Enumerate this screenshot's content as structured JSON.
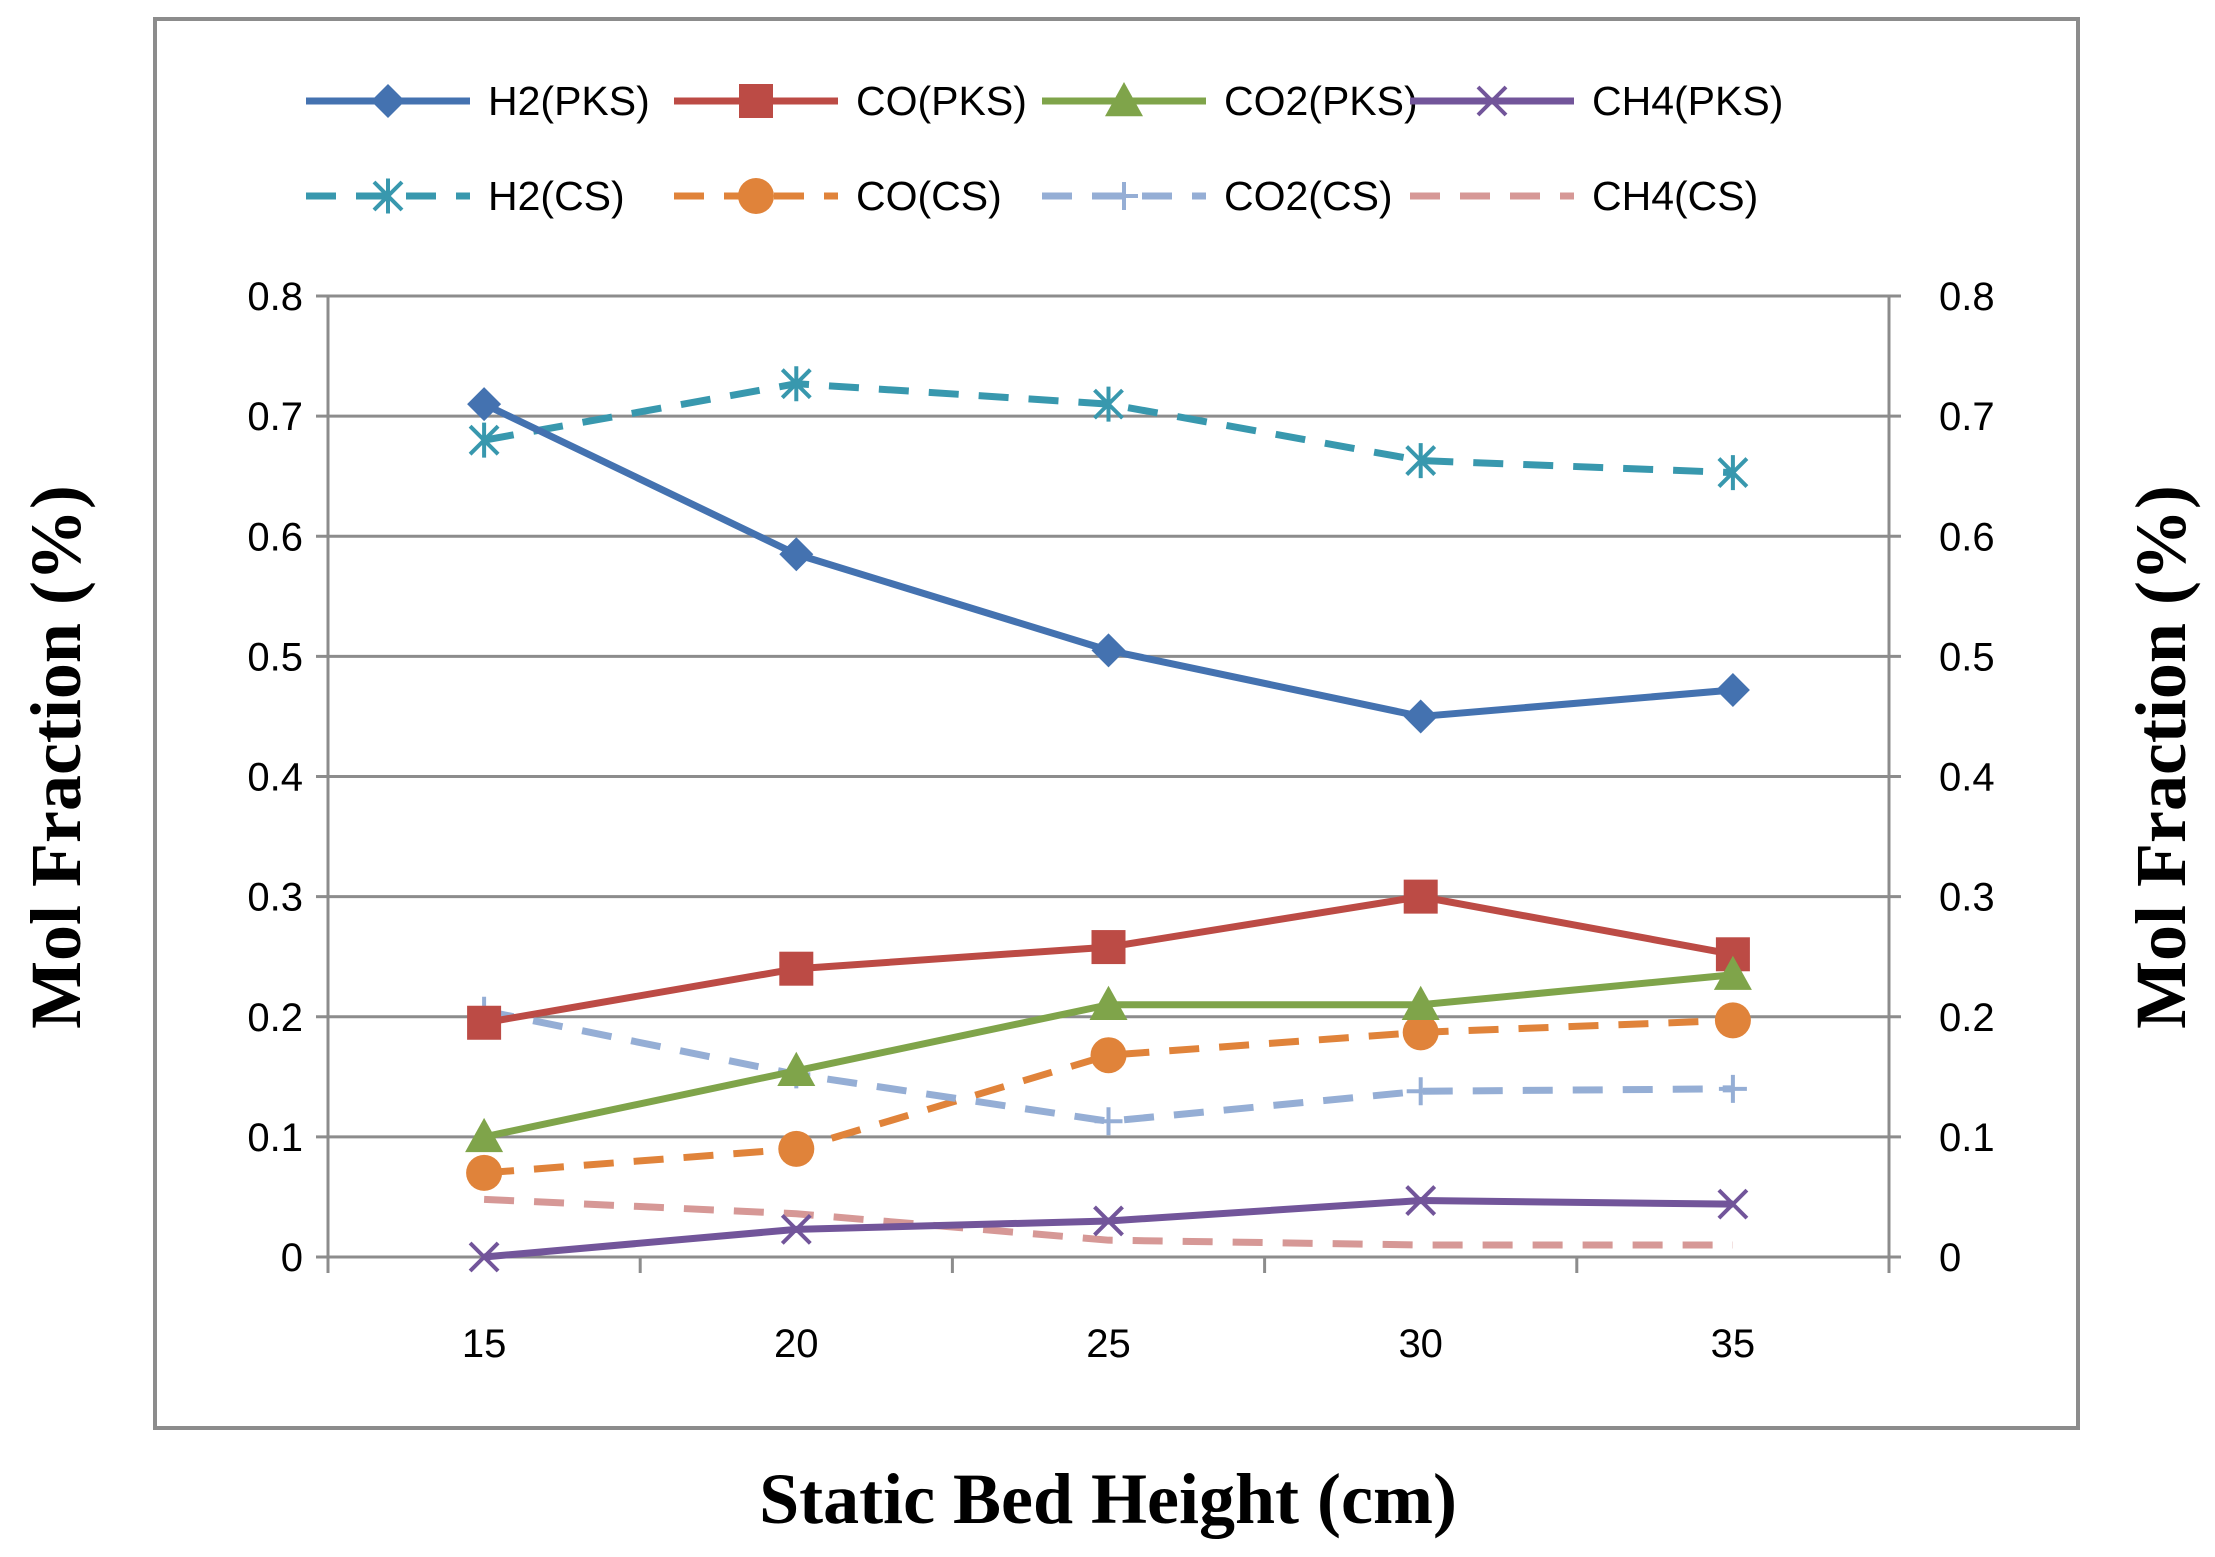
{
  "chart_data": {
    "type": "line",
    "title": "",
    "xlabel": "Static Bed Height (cm)",
    "ylabel_left": "Mol Fraction (%)",
    "ylabel_right": "Mol Fraction (%)",
    "categories": [
      15,
      20,
      25,
      30,
      35
    ],
    "ylim": [
      0,
      0.8
    ],
    "yticks": [
      0,
      0.1,
      0.2,
      0.3,
      0.4,
      0.5,
      0.6,
      0.7,
      0.8
    ],
    "ytick_labels": [
      "0",
      "0.1",
      "0.2",
      "0.3",
      "0.4",
      "0.5",
      "0.6",
      "0.7",
      "0.8"
    ],
    "grid": "horizontal",
    "legend_position": "top",
    "series": [
      {
        "name": "H2(PKS)",
        "values": [
          0.71,
          0.585,
          0.505,
          0.45,
          0.472
        ],
        "color": "#4472B0",
        "dash": "solid",
        "marker": "diamond"
      },
      {
        "name": "CO(PKS)",
        "values": [
          0.195,
          0.24,
          0.258,
          0.3,
          0.252
        ],
        "color": "#BC4B45",
        "dash": "solid",
        "marker": "square"
      },
      {
        "name": "CO2(PKS)",
        "values": [
          0.1,
          0.155,
          0.21,
          0.21,
          0.235
        ],
        "color": "#7FA44A",
        "dash": "solid",
        "marker": "triangle"
      },
      {
        "name": "CH4(PKS)",
        "values": [
          0.0,
          0.023,
          0.03,
          0.047,
          0.044
        ],
        "color": "#72559A",
        "dash": "solid",
        "marker": "x"
      },
      {
        "name": "H2(CS)",
        "values": [
          0.68,
          0.727,
          0.71,
          0.663,
          0.653
        ],
        "color": "#3898AE",
        "dash": "dash",
        "marker": "star"
      },
      {
        "name": "CO(CS)",
        "values": [
          0.07,
          0.09,
          0.168,
          0.187,
          0.197
        ],
        "color": "#E0833A",
        "dash": "dash",
        "marker": "circle"
      },
      {
        "name": "CO2(CS)",
        "values": [
          0.205,
          0.152,
          0.113,
          0.138,
          0.14
        ],
        "color": "#95AED5",
        "dash": "dash",
        "marker": "plus"
      },
      {
        "name": "CH4(CS)",
        "values": [
          0.048,
          0.036,
          0.014,
          0.01,
          0.01
        ],
        "color": "#D69896",
        "dash": "dash",
        "marker": "none"
      }
    ]
  }
}
